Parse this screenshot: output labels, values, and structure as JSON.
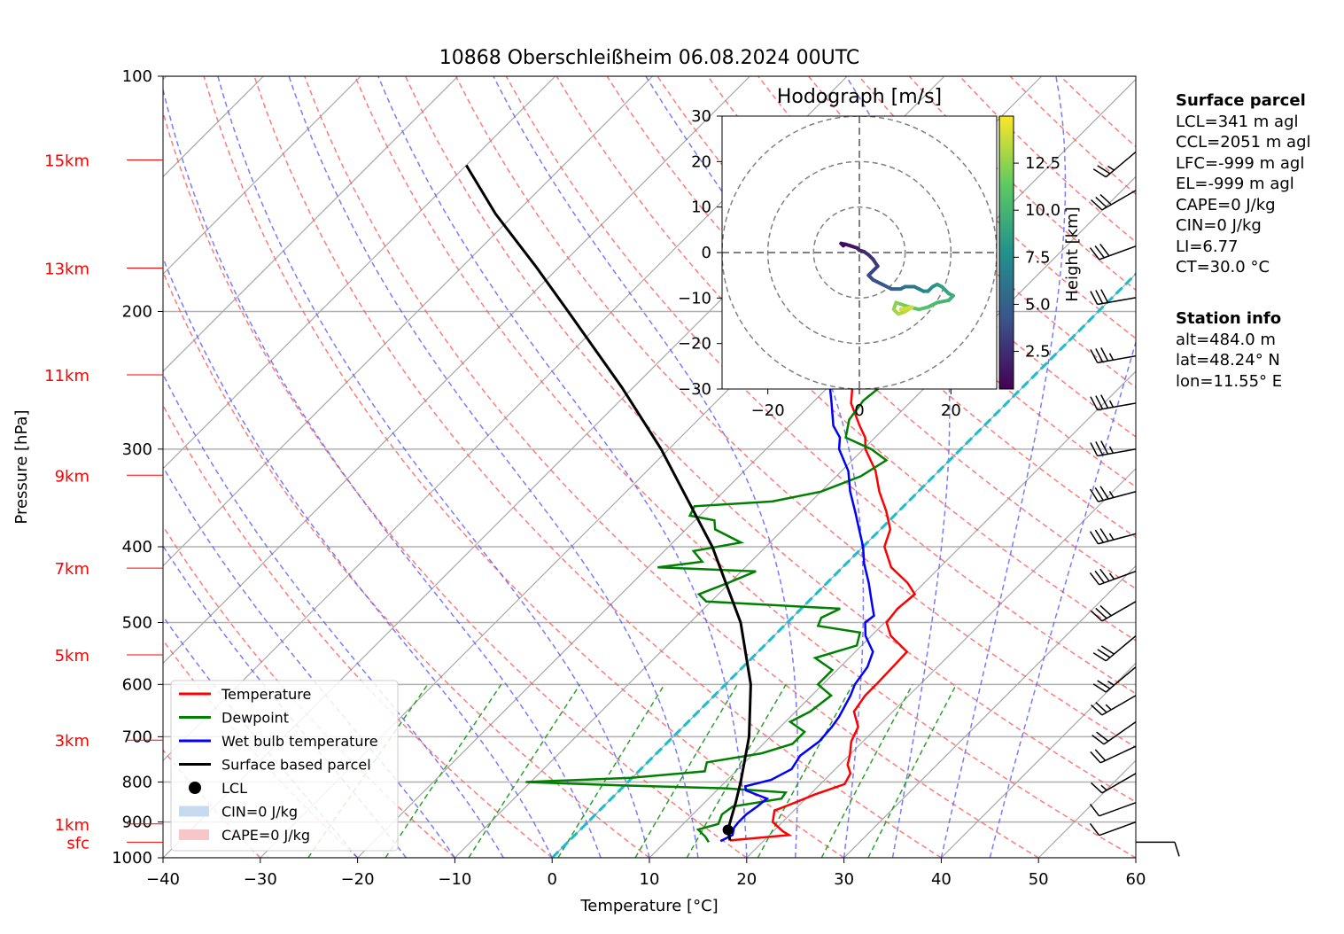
{
  "chart_data": {
    "type": "skew-t",
    "title": "10868 Oberschleißheim 06.08.2024 00UTC",
    "xlabel": "Temperature [°C]",
    "ylabel": "Pressure [hPa]",
    "xlim": [
      -40,
      60
    ],
    "ylim_hpa": [
      1000,
      100
    ],
    "x_ticks": [
      "−40",
      "−30",
      "−20",
      "−10",
      "0",
      "10",
      "20",
      "30",
      "40",
      "50",
      "60"
    ],
    "x_tick_values": [
      -40,
      -30,
      -20,
      -10,
      0,
      10,
      20,
      30,
      40,
      50,
      60
    ],
    "y_ticks": [
      "100",
      "200",
      "300",
      "400",
      "500",
      "600",
      "700",
      "800",
      "900",
      "1000"
    ],
    "y_tick_values": [
      100,
      200,
      300,
      400,
      500,
      600,
      700,
      800,
      900,
      1000
    ],
    "height_labels": [
      {
        "label": "sfc",
        "p": 955
      },
      {
        "label": "1km",
        "p": 905
      },
      {
        "label": "3km",
        "p": 707
      },
      {
        "label": "5km",
        "p": 550
      },
      {
        "label": "7km",
        "p": 426
      },
      {
        "label": "9km",
        "p": 324
      },
      {
        "label": "11km",
        "p": 241
      },
      {
        "label": "13km",
        "p": 176
      },
      {
        "label": "15km",
        "p": 128
      }
    ],
    "grid": true,
    "legend_position": "bottom-left",
    "legend": [
      {
        "label": "Temperature",
        "color": "#ff0000",
        "kind": "line"
      },
      {
        "label": "Dewpoint",
        "color": "#008000",
        "kind": "line"
      },
      {
        "label": "Wet bulb temperature",
        "color": "#0000ff",
        "kind": "line"
      },
      {
        "label": "Surface based parcel",
        "color": "#000000",
        "kind": "line"
      },
      {
        "label": "LCL",
        "color": "#000000",
        "kind": "dot"
      },
      {
        "label": "CIN=0 J/kg",
        "color": "#c6dbef",
        "kind": "patch"
      },
      {
        "label": "CAPE=0 J/kg",
        "color": "#f7c6c6",
        "kind": "patch"
      }
    ],
    "temperature": [
      [
        950,
        16.5
      ],
      [
        935,
        22
      ],
      [
        925,
        21
      ],
      [
        900,
        19
      ],
      [
        870,
        18
      ],
      [
        850,
        19.3
      ],
      [
        830,
        20.5
      ],
      [
        805,
        22.5
      ],
      [
        780,
        22
      ],
      [
        760,
        20.8
      ],
      [
        740,
        20.1
      ],
      [
        710,
        18.8
      ],
      [
        680,
        18
      ],
      [
        650,
        16
      ],
      [
        620,
        15.5
      ],
      [
        600,
        15.5
      ],
      [
        570,
        15.4
      ],
      [
        545,
        15.3
      ],
      [
        520,
        12
      ],
      [
        500,
        10.2
      ],
      [
        480,
        9.9
      ],
      [
        460,
        10.2
      ],
      [
        445,
        8.3
      ],
      [
        425,
        5
      ],
      [
        400,
        2.2
      ],
      [
        380,
        1
      ],
      [
        360,
        -1.3
      ],
      [
        340,
        -4
      ],
      [
        320,
        -6.5
      ],
      [
        300,
        -9.8
      ],
      [
        290,
        -11
      ],
      [
        280,
        -12.8
      ],
      [
        262,
        -16
      ],
      [
        250,
        -17.5
      ],
      [
        240,
        -18.8
      ],
      [
        225,
        -22
      ],
      [
        210,
        -25
      ],
      [
        195,
        -28
      ],
      [
        185,
        -32
      ],
      [
        180,
        -35.5
      ],
      [
        178,
        -37
      ],
      [
        175,
        -37
      ],
      [
        170,
        -36.5
      ],
      [
        165,
        -37
      ],
      [
        160,
        -37.8
      ],
      [
        150,
        -38
      ],
      [
        145,
        -38.5
      ],
      [
        140,
        -39.3
      ],
      [
        135,
        -40.5
      ],
      [
        130,
        -41
      ]
    ],
    "dewpoint": [
      [
        955,
        14.5
      ],
      [
        940,
        13.6
      ],
      [
        920,
        12.1
      ],
      [
        905,
        13.6
      ],
      [
        880,
        13
      ],
      [
        860,
        13.3
      ],
      [
        840,
        17.5
      ],
      [
        825,
        17.3
      ],
      [
        815,
        10.7
      ],
      [
        808,
        -0.5
      ],
      [
        800,
        -10.5
      ],
      [
        790,
        -0.1
      ],
      [
        775,
        6.8
      ],
      [
        755,
        6.1
      ],
      [
        735,
        10.8
      ],
      [
        715,
        13
      ],
      [
        690,
        13
      ],
      [
        670,
        10.5
      ],
      [
        650,
        11.5
      ],
      [
        620,
        12
      ],
      [
        600,
        9.5
      ],
      [
        575,
        9.5
      ],
      [
        555,
        6.5
      ],
      [
        535,
        9.5
      ],
      [
        515,
        8.5
      ],
      [
        505,
        3.5
      ],
      [
        493,
        3
      ],
      [
        480,
        4
      ],
      [
        470,
        -10.5
      ],
      [
        460,
        -12
      ],
      [
        445,
        -10.2
      ],
      [
        430,
        -8.5
      ],
      [
        425,
        -19
      ],
      [
        418,
        -15
      ],
      [
        405,
        -17
      ],
      [
        395,
        -13
      ],
      [
        380,
        -17
      ],
      [
        370,
        -18
      ],
      [
        365,
        -21
      ],
      [
        355,
        -21.5
      ],
      [
        350,
        -14
      ],
      [
        340,
        -10
      ],
      [
        325,
        -7.5
      ],
      [
        310,
        -6.5
      ],
      [
        300,
        -9.2
      ],
      [
        290,
        -13
      ],
      [
        275,
        -14.5
      ],
      [
        260,
        -15
      ],
      [
        245,
        -14.5
      ],
      [
        235,
        -16.5
      ],
      [
        220,
        -18.5
      ],
      [
        208,
        -19.5
      ],
      [
        198,
        -20
      ],
      [
        190,
        -17.5
      ],
      [
        185,
        -19
      ],
      [
        181,
        -35
      ],
      [
        178,
        -32
      ],
      [
        170,
        -32.5
      ],
      [
        160,
        -32
      ],
      [
        150,
        -31.5
      ],
      [
        140,
        -30.5
      ],
      [
        133,
        -30
      ],
      [
        128,
        -30
      ]
    ],
    "wet_bulb": [
      [
        952,
        15.6
      ],
      [
        935,
        16.2
      ],
      [
        915,
        15.6
      ],
      [
        900,
        15.5
      ],
      [
        880,
        15.5
      ],
      [
        860,
        15.8
      ],
      [
        840,
        16
      ],
      [
        820,
        13
      ],
      [
        810,
        12.5
      ],
      [
        795,
        14.5
      ],
      [
        770,
        15.5
      ],
      [
        740,
        15
      ],
      [
        710,
        15.5
      ],
      [
        680,
        15.3
      ],
      [
        660,
        15
      ],
      [
        640,
        14.5
      ],
      [
        620,
        14
      ],
      [
        600,
        13.3
      ],
      [
        570,
        12.8
      ],
      [
        545,
        11.8
      ],
      [
        520,
        9.4
      ],
      [
        500,
        8
      ],
      [
        490,
        8.2
      ],
      [
        470,
        6.5
      ],
      [
        445,
        4.3
      ],
      [
        420,
        1.8
      ],
      [
        400,
        0
      ],
      [
        380,
        -2.2
      ],
      [
        360,
        -4.5
      ],
      [
        340,
        -7
      ],
      [
        320,
        -9.3
      ],
      [
        300,
        -12.5
      ],
      [
        290,
        -13.6
      ],
      [
        280,
        -15.5
      ],
      [
        262,
        -18
      ],
      [
        250,
        -19.8
      ],
      [
        240,
        -21.5
      ],
      [
        225,
        -25
      ],
      [
        210,
        -28
      ],
      [
        195,
        -31.5
      ],
      [
        185,
        -35
      ],
      [
        180,
        -37.5
      ],
      [
        178,
        -38
      ],
      [
        175,
        -38.3
      ],
      [
        170,
        -37.5
      ],
      [
        165,
        -38.5
      ],
      [
        160,
        -39
      ],
      [
        150,
        -39.5
      ],
      [
        145,
        -40
      ],
      [
        140,
        -40.5
      ],
      [
        135,
        -41
      ],
      [
        130,
        -41.2
      ]
    ],
    "parcel": [
      [
        950,
        16.5
      ],
      [
        921,
        15.2
      ],
      [
        850,
        13.2
      ],
      [
        800,
        11.6
      ],
      [
        700,
        7.8
      ],
      [
        600,
        2.6
      ],
      [
        500,
        -4.8
      ],
      [
        400,
        -15.5
      ],
      [
        300,
        -30.8
      ],
      [
        250,
        -41.2
      ],
      [
        200,
        -54.5
      ],
      [
        175,
        -62.5
      ],
      [
        150,
        -72
      ],
      [
        130,
        -80
      ]
    ],
    "lcl": {
      "p": 921,
      "t": 15.2
    },
    "wind_barbs_unit": "kt",
    "wind_barbs": [
      {
        "p": 955,
        "dir": 90,
        "spd": 10
      },
      {
        "p": 900,
        "dir": 250,
        "spd": 10
      },
      {
        "p": 850,
        "dir": 250,
        "spd": 10
      },
      {
        "p": 780,
        "dir": 240,
        "spd": 15
      },
      {
        "p": 720,
        "dir": 245,
        "spd": 20
      },
      {
        "p": 670,
        "dir": 235,
        "spd": 20
      },
      {
        "p": 620,
        "dir": 240,
        "spd": 25
      },
      {
        "p": 570,
        "dir": 230,
        "spd": 25
      },
      {
        "p": 520,
        "dir": 230,
        "spd": 30
      },
      {
        "p": 470,
        "dir": 240,
        "spd": 30
      },
      {
        "p": 430,
        "dir": 250,
        "spd": 35
      },
      {
        "p": 385,
        "dir": 255,
        "spd": 35
      },
      {
        "p": 340,
        "dir": 255,
        "spd": 35
      },
      {
        "p": 300,
        "dir": 260,
        "spd": 35
      },
      {
        "p": 262,
        "dir": 260,
        "spd": 35
      },
      {
        "p": 228,
        "dir": 260,
        "spd": 35
      },
      {
        "p": 192,
        "dir": 260,
        "spd": 30
      },
      {
        "p": 165,
        "dir": 250,
        "spd": 30
      },
      {
        "p": 140,
        "dir": 240,
        "spd": 30
      },
      {
        "p": 125,
        "dir": 230,
        "spd": 25
      }
    ],
    "hodograph": {
      "title": "Hodograph [m/s]",
      "xlim": [
        -30,
        30
      ],
      "ylim": [
        -30,
        30
      ],
      "x_ticks": [
        "−20",
        "0",
        "20"
      ],
      "x_tick_values": [
        -20,
        0,
        20
      ],
      "y_ticks": [
        "30",
        "20",
        "10",
        "0",
        "−10",
        "−20",
        "−30"
      ],
      "y_tick_values": [
        30,
        20,
        10,
        0,
        -10,
        -20,
        -30
      ],
      "rings": [
        10,
        20,
        30
      ],
      "colorbar_label": "Height [km]",
      "colorbar_ticks": [
        "2.5",
        "5.0",
        "7.5",
        "10.0",
        "12.5"
      ],
      "colorbar_tick_values": [
        2.5,
        5,
        7.5,
        10,
        12.5
      ],
      "colorbar_range": [
        0.5,
        15
      ],
      "trace": [
        [
          -3.5,
          1.5,
          0.5
        ],
        [
          -4,
          2,
          0.8
        ],
        [
          -3,
          1.8,
          1.1
        ],
        [
          -2,
          1.5,
          1.4
        ],
        [
          -0.5,
          1,
          1.7
        ],
        [
          0,
          0.5,
          2
        ],
        [
          1,
          0.2,
          2.3
        ],
        [
          2,
          -0.5,
          2.6
        ],
        [
          3,
          -1.5,
          2.9
        ],
        [
          4,
          -3,
          3.2
        ],
        [
          3,
          -4,
          3.5
        ],
        [
          2,
          -5,
          3.8
        ],
        [
          3,
          -6,
          4.1
        ],
        [
          5,
          -7,
          4.4
        ],
        [
          6,
          -7.5,
          4.7
        ],
        [
          7,
          -8,
          5.0
        ],
        [
          8,
          -8,
          5.3
        ],
        [
          9,
          -8,
          5.6
        ],
        [
          10,
          -7.5,
          6.0
        ],
        [
          12,
          -7.5,
          6.4
        ],
        [
          13,
          -8,
          6.8
        ],
        [
          14,
          -8.5,
          7.2
        ],
        [
          15,
          -8.5,
          7.6
        ],
        [
          16,
          -7.5,
          8.0
        ],
        [
          17,
          -7,
          8.4
        ],
        [
          18,
          -7.5,
          8.8
        ],
        [
          19.5,
          -9,
          9.2
        ],
        [
          20.5,
          -9.5,
          9.6
        ],
        [
          19.5,
          -10.5,
          10.0
        ],
        [
          17,
          -11,
          10.4
        ],
        [
          15,
          -12,
          10.8
        ],
        [
          13,
          -12.5,
          11.2
        ],
        [
          11,
          -12,
          11.6
        ],
        [
          9.5,
          -11.5,
          12.0
        ],
        [
          8,
          -11,
          12.4
        ],
        [
          7.5,
          -12.5,
          12.8
        ],
        [
          8.5,
          -13.5,
          13.2
        ],
        [
          10,
          -13,
          13.6
        ],
        [
          11.5,
          -12,
          14.0
        ],
        [
          9,
          -12.5,
          14.4
        ]
      ]
    }
  },
  "info": {
    "parcel_header": "Surface parcel",
    "parcel_lines": [
      "LCL=341 m agl",
      "CCL=2051 m agl",
      "LFC=-999 m agl",
      "EL=-999 m agl",
      "CAPE=0 J/kg",
      "CIN=0 J/kg",
      "LI=6.77",
      "CT=30.0 °C"
    ],
    "station_header": "Station info",
    "station_lines": [
      "alt=484.0 m",
      "lat=48.24° N",
      "lon=11.55° E"
    ]
  }
}
